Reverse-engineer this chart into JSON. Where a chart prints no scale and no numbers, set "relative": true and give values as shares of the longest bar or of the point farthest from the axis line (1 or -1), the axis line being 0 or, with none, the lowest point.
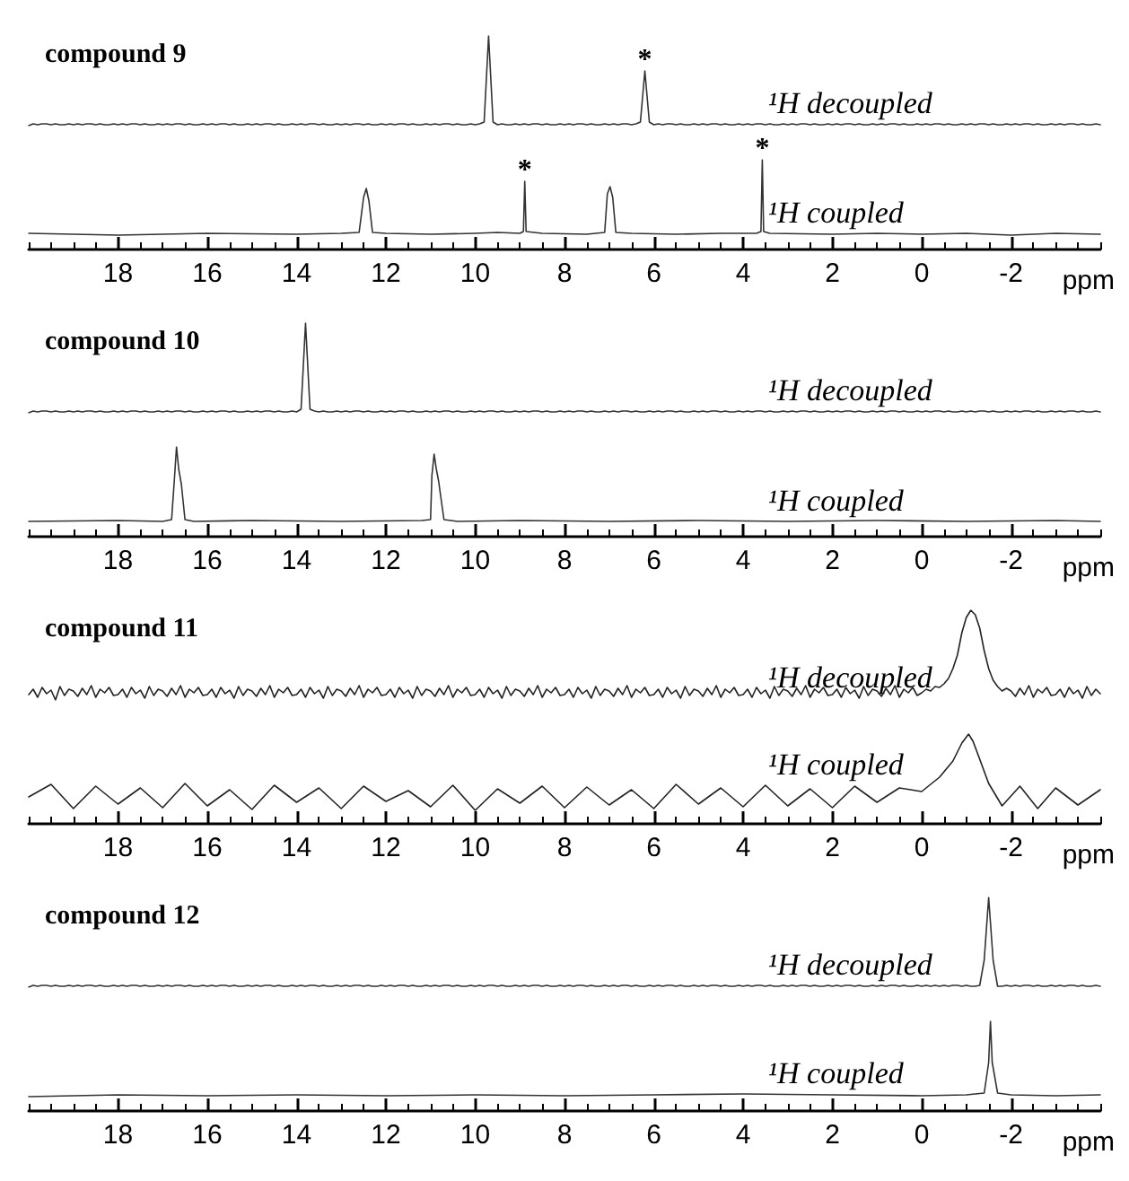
{
  "chart_data": [
    {
      "type": "line",
      "title": "compound 9",
      "relative": true,
      "tick_labels": false,
      "marker": "none",
      "categories": [
        null,
        null,
        null,
        null,
        null,
        null,
        null,
        null,
        null,
        null,
        null,
        null,
        null,
        null,
        null,
        null,
        null,
        null,
        null,
        null,
        null,
        null,
        null,
        null,
        null,
        null,
        null,
        null,
        null,
        null,
        null,
        null,
        null,
        null,
        null,
        null,
        null,
        null,
        null,
        null,
        null,
        null,
        null,
        null,
        null,
        null,
        null,
        null,
        null,
        null,
        null,
        null,
        null,
        null,
        null,
        null,
        null,
        null,
        null,
        null,
        null,
        null,
        null,
        null,
        null,
        null,
        null,
        null,
        null,
        null,
        null,
        null,
        null,
        null,
        null,
        null,
        null,
        null,
        null,
        null,
        null,
        null,
        null,
        null,
        null,
        null,
        null,
        null,
        null,
        null,
        null,
        null,
        null,
        null,
        null,
        null,
        null,
        null,
        null,
        null,
        null,
        null,
        null,
        null,
        null,
        null,
        null,
        null,
        null,
        null,
        null,
        null,
        null,
        null,
        null,
        null,
        null,
        null,
        null,
        null,
        null,
        null,
        null,
        null,
        null,
        null,
        null,
        null,
        null,
        null,
        null,
        null,
        null,
        null,
        null,
        null,
        null,
        null,
        null,
        null,
        null,
        null,
        null,
        null,
        null,
        null,
        null,
        null,
        null,
        null,
        null,
        null,
        null,
        null,
        null,
        null,
        null,
        null,
        null,
        null,
        null,
        null,
        null,
        null,
        null,
        null,
        null,
        null,
        null,
        null,
        null,
        null,
        null,
        null,
        null,
        null,
        null,
        null,
        null,
        null,
        null,
        null,
        null,
        null,
        null,
        null,
        null,
        null,
        null,
        null,
        null,
        null,
        null,
        null,
        null,
        null,
        null,
        null,
        null,
        null,
        null,
        null,
        null,
        null,
        null,
        null,
        null,
        null,
        null,
        null,
        null,
        null,
        null,
        null,
        null,
        null,
        null,
        null,
        null,
        null,
        null,
        null,
        null,
        null,
        null,
        null,
        null,
        null,
        null,
        null,
        null,
        null,
        null,
        null,
        null,
        null,
        null,
        null,
        null,
        null,
        null
      ],
      "annotations": [
        {
          "text": "*",
          "y": 0.61
        }
      ],
      "series": [
        {
          "name": "¹H decoupled",
          "color": "#333333",
          "values": [
            0,
            0.02,
            0.01,
            0.02,
            0.02,
            0.01,
            0.02,
            0.01,
            0.01,
            0.02,
            0.01,
            0.02,
            0.01,
            0.02,
            0.02,
            0.01,
            0.02,
            0.01,
            0.01,
            0.02,
            0.01,
            0.02,
            0.01,
            0.02,
            0.02,
            0.01,
            0.02,
            0.01,
            0.01,
            0.02,
            0.01,
            0.02,
            0.01,
            0.02,
            0.02,
            0.01,
            0.02,
            0.01,
            0.01,
            0.02,
            0.01,
            0.02,
            0.01,
            0.02,
            0.02,
            0.01,
            0.02,
            0.01,
            0.01,
            0.02,
            0.01,
            0.02,
            0.01,
            0.02,
            0.02,
            0.01,
            0.02,
            0.01,
            0.01,
            0.02,
            0.01,
            0.02,
            0.01,
            0.02,
            0.02,
            0.01,
            0.02,
            0.01,
            0.01,
            0.02,
            0.01,
            0.02,
            0.01,
            0.02,
            0.02,
            0.01,
            0.02,
            0.01,
            0.01,
            0.02,
            0.01,
            0.02,
            0.01,
            0.02,
            0.02,
            0.01,
            0.02,
            0.01,
            0.01,
            0.02,
            0.01,
            0.02,
            0.01,
            0.02,
            0.02,
            0.01,
            0.02,
            0.01,
            0.01,
            0.02,
            0.01,
            0.02,
            0.04,
            1,
            0.04,
            0.01,
            0.02,
            0.01,
            0.01,
            0.02,
            0.01,
            0.02,
            0.01,
            0.02,
            0.02,
            0.01,
            0.02,
            0.01,
            0.01,
            0.02,
            0.01,
            0.02,
            0.01,
            0.02,
            0.02,
            0.01,
            0.02,
            0.01,
            0.01,
            0.02,
            0.01,
            0.02,
            0.01,
            0.02,
            0.02,
            0.01,
            0.02,
            0.04,
            0.61,
            0.04,
            0.01,
            0.02,
            0.01,
            0.02,
            0.02,
            0.01,
            0.02,
            0.01,
            0.01,
            0.02,
            0.01,
            0.02,
            0.01,
            0.02,
            0.02,
            0.01,
            0.02,
            0.01,
            0.01,
            0.02,
            0.01,
            0.02,
            0.01,
            0.02,
            0.02,
            0.01,
            0.02,
            0.01,
            0.01,
            0.02,
            0.01,
            0.02,
            0.01,
            0.02,
            0.02,
            0.01,
            0.02,
            0.01,
            0.01,
            0.02,
            0.01,
            0.02,
            0.01,
            0.02,
            0.02,
            0.01,
            0.02,
            0.01,
            0.01,
            0.02,
            0.01,
            0.02,
            0.01,
            0.02,
            0.02,
            0.01,
            0.02,
            0.01,
            0.01,
            0.02,
            0.01,
            0.02,
            0.01,
            0.02,
            0.02,
            0.01,
            0.02,
            0.01,
            0.01,
            0.02,
            0.01,
            0.02,
            0.01,
            0.02,
            0.02,
            0.01,
            0.02,
            0.01,
            0.01,
            0.02,
            0.01,
            0.02,
            0.01,
            0.02,
            0.02,
            0.01,
            0.02,
            0.01,
            0.01,
            0.02,
            0.01,
            0.02,
            0.01,
            0.02,
            0.02,
            0.01,
            0.02,
            0.01,
            0.01,
            0.02,
            0.01
          ]
        }
      ]
    },
    {
      "type": "line",
      "xlabel": "ppm",
      "relative": true,
      "tick_labels": "x",
      "marker": "none",
      "xlim": [
        20,
        -4
      ],
      "xticks": [
        18,
        16,
        14,
        12,
        10,
        8,
        6,
        4,
        2,
        0,
        -2
      ],
      "annotations": [
        {
          "text": "*",
          "x": 8.89,
          "y": 0.76
        },
        {
          "text": "*",
          "x": 3.57,
          "y": 1
        }
      ],
      "series": [
        {
          "name": "¹H coupled",
          "color": "#333333",
          "x": [
            20,
            18,
            16,
            14,
            13,
            12.6,
            12.5,
            12.44,
            12.38,
            12.3,
            12,
            11,
            10,
            9.5,
            9,
            8.92,
            8.89,
            8.86,
            8.5,
            7.5,
            7.1,
            7.04,
            6.98,
            6.92,
            6.85,
            6.5,
            5.5,
            4.5,
            3.7,
            3.6,
            3.57,
            3.54,
            3.4,
            2,
            1,
            0,
            -1,
            -2,
            -3,
            -4
          ],
          "values": [
            0.18,
            0.16,
            0.18,
            0.17,
            0.18,
            0.19,
            0.58,
            0.68,
            0.54,
            0.19,
            0.18,
            0.17,
            0.18,
            0.19,
            0.18,
            0.2,
            0.76,
            0.2,
            0.18,
            0.17,
            0.19,
            0.62,
            0.7,
            0.58,
            0.19,
            0.18,
            0.17,
            0.18,
            0.18,
            0.2,
            1,
            0.2,
            0.18,
            0.17,
            0.18,
            0.17,
            0.18,
            0.16,
            0.18,
            0.17
          ]
        }
      ]
    },
    {
      "type": "line",
      "title": "compound 10",
      "relative": true,
      "tick_labels": false,
      "marker": "none",
      "categories": [
        null,
        null,
        null,
        null,
        null,
        null,
        null,
        null,
        null,
        null,
        null,
        null,
        null,
        null,
        null,
        null,
        null,
        null,
        null,
        null,
        null,
        null,
        null,
        null,
        null,
        null,
        null,
        null,
        null,
        null,
        null,
        null,
        null,
        null,
        null,
        null,
        null,
        null,
        null,
        null,
        null,
        null,
        null,
        null,
        null,
        null,
        null,
        null,
        null,
        null,
        null,
        null,
        null,
        null,
        null,
        null,
        null,
        null,
        null,
        null,
        null,
        null,
        null,
        null,
        null,
        null,
        null,
        null,
        null,
        null,
        null,
        null,
        null,
        null,
        null,
        null,
        null,
        null,
        null,
        null,
        null,
        null,
        null,
        null,
        null,
        null,
        null,
        null,
        null,
        null,
        null,
        null,
        null,
        null,
        null,
        null,
        null,
        null,
        null,
        null,
        null,
        null,
        null,
        null,
        null,
        null,
        null,
        null,
        null,
        null,
        null,
        null,
        null,
        null,
        null,
        null,
        null,
        null,
        null,
        null,
        null,
        null,
        null,
        null,
        null,
        null,
        null,
        null,
        null,
        null,
        null,
        null,
        null,
        null,
        null,
        null,
        null,
        null,
        null,
        null,
        null,
        null,
        null,
        null,
        null,
        null,
        null,
        null,
        null,
        null,
        null,
        null,
        null,
        null,
        null,
        null,
        null,
        null,
        null,
        null,
        null,
        null,
        null,
        null,
        null,
        null,
        null,
        null,
        null,
        null,
        null,
        null,
        null,
        null,
        null,
        null,
        null,
        null,
        null,
        null,
        null,
        null,
        null,
        null,
        null,
        null,
        null,
        null,
        null,
        null,
        null,
        null,
        null,
        null,
        null,
        null,
        null,
        null,
        null,
        null,
        null,
        null,
        null,
        null,
        null,
        null,
        null,
        null,
        null,
        null,
        null,
        null,
        null,
        null,
        null,
        null,
        null,
        null,
        null,
        null,
        null,
        null,
        null,
        null,
        null,
        null,
        null,
        null,
        null,
        null,
        null,
        null,
        null,
        null,
        null,
        null,
        null,
        null,
        null,
        null,
        null
      ],
      "series": [
        {
          "name": "¹H decoupled",
          "color": "#333333",
          "values": [
            0,
            0.02,
            0.01,
            0.02,
            0.02,
            0.01,
            0.02,
            0.01,
            0.01,
            0.02,
            0.01,
            0.02,
            0.01,
            0.02,
            0.02,
            0.01,
            0.02,
            0.01,
            0.01,
            0.02,
            0.01,
            0.02,
            0.01,
            0.02,
            0.02,
            0.01,
            0.02,
            0.01,
            0.01,
            0.02,
            0.01,
            0.02,
            0.01,
            0.02,
            0.02,
            0.01,
            0.02,
            0.01,
            0.01,
            0.02,
            0.01,
            0.02,
            0.01,
            0.02,
            0.02,
            0.01,
            0.02,
            0.01,
            0.01,
            0.02,
            0.01,
            0.02,
            0.01,
            0.02,
            0.02,
            0.01,
            0.02,
            0.01,
            0.01,
            0.02,
            0.01,
            0.04,
            1,
            0.04,
            0.02,
            0.01,
            0.02,
            0.01,
            0.01,
            0.02,
            0.01,
            0.02,
            0.01,
            0.02,
            0.02,
            0.01,
            0.02,
            0.01,
            0.01,
            0.02,
            0.01,
            0.02,
            0.01,
            0.02,
            0.02,
            0.01,
            0.02,
            0.01,
            0.01,
            0.02,
            0.01,
            0.02,
            0.01,
            0.02,
            0.02,
            0.01,
            0.02,
            0.01,
            0.01,
            0.02,
            0.01,
            0.02,
            0.01,
            0.02,
            0.02,
            0.01,
            0.02,
            0.01,
            0.01,
            0.02,
            0.01,
            0.02,
            0.01,
            0.02,
            0.02,
            0.01,
            0.02,
            0.01,
            0.01,
            0.02,
            0.01,
            0.02,
            0.01,
            0.02,
            0.02,
            0.01,
            0.02,
            0.01,
            0.01,
            0.02,
            0.01,
            0.02,
            0.01,
            0.02,
            0.02,
            0.01,
            0.02,
            0.01,
            0.01,
            0.02,
            0.01,
            0.02,
            0.01,
            0.02,
            0.02,
            0.01,
            0.02,
            0.01,
            0.01,
            0.02,
            0.01,
            0.02,
            0.01,
            0.02,
            0.02,
            0.01,
            0.02,
            0.01,
            0.01,
            0.02,
            0.01,
            0.02,
            0.01,
            0.02,
            0.02,
            0.01,
            0.02,
            0.01,
            0.01,
            0.02,
            0.01,
            0.02,
            0.01,
            0.02,
            0.02,
            0.01,
            0.02,
            0.01,
            0.01,
            0.02,
            0.01,
            0.02,
            0.01,
            0.02,
            0.02,
            0.01,
            0.02,
            0.01,
            0.01,
            0.02,
            0.01,
            0.02,
            0.01,
            0.02,
            0.02,
            0.01,
            0.02,
            0.01,
            0.01,
            0.02,
            0.01,
            0.02,
            0.01,
            0.02,
            0.02,
            0.01,
            0.02,
            0.01,
            0.01,
            0.02,
            0.01,
            0.02,
            0.01,
            0.02,
            0.02,
            0.01,
            0.02,
            0.01,
            0.01,
            0.02,
            0.01,
            0.02,
            0.01,
            0.02,
            0.02,
            0.01,
            0.02,
            0.01,
            0.01,
            0.02,
            0.01,
            0.02,
            0.01,
            0.02,
            0.02,
            0.01,
            0.02,
            0.01,
            0.01,
            0.02,
            0.01
          ]
        }
      ]
    },
    {
      "type": "line",
      "xlabel": "ppm",
      "relative": true,
      "tick_labels": "x",
      "marker": "none",
      "xlim": [
        20,
        -4
      ],
      "xticks": [
        18,
        16,
        14,
        12,
        10,
        8,
        6,
        4,
        2,
        0,
        -2
      ],
      "series": [
        {
          "name": "¹H coupled",
          "color": "#333333",
          "x": [
            20,
            18,
            17,
            16.8,
            16.74,
            16.69,
            16.64,
            16.58,
            16.5,
            16.3,
            15,
            13,
            11.2,
            11,
            10.97,
            10.92,
            10.87,
            10.82,
            10.7,
            10.4,
            9,
            7,
            5,
            3,
            1,
            -1,
            -3,
            -4
          ],
          "values": [
            0.17,
            0.18,
            0.17,
            0.19,
            0.62,
            1,
            0.75,
            0.58,
            0.19,
            0.17,
            0.18,
            0.17,
            0.18,
            0.19,
            0.68,
            0.92,
            0.75,
            0.62,
            0.19,
            0.17,
            0.18,
            0.17,
            0.18,
            0.17,
            0.18,
            0.17,
            0.18,
            0.17
          ]
        }
      ]
    },
    {
      "type": "line",
      "title": "compound 11",
      "relative": true,
      "tick_labels": false,
      "marker": "none",
      "categories": [
        null,
        null,
        null,
        null,
        null,
        null,
        null,
        null,
        null,
        null,
        null,
        null,
        null,
        null,
        null,
        null,
        null,
        null,
        null,
        null,
        null,
        null,
        null,
        null,
        null,
        null,
        null,
        null,
        null,
        null,
        null,
        null,
        null,
        null,
        null,
        null,
        null,
        null,
        null,
        null,
        null,
        null,
        null,
        null,
        null,
        null,
        null,
        null,
        null,
        null,
        null,
        null,
        null,
        null,
        null,
        null,
        null,
        null,
        null,
        null,
        null,
        null,
        null,
        null,
        null,
        null,
        null,
        null,
        null,
        null,
        null,
        null,
        null,
        null,
        null,
        null,
        null,
        null,
        null,
        null,
        null,
        null,
        null,
        null,
        null,
        null,
        null,
        null,
        null,
        null,
        null,
        null,
        null,
        null,
        null,
        null,
        null,
        null,
        null,
        null,
        null,
        null,
        null,
        null,
        null,
        null,
        null,
        null,
        null,
        null,
        null,
        null,
        null,
        null,
        null,
        null,
        null,
        null,
        null,
        null,
        null,
        null,
        null,
        null,
        null,
        null,
        null,
        null,
        null,
        null,
        null,
        null,
        null,
        null,
        null,
        null,
        null,
        null,
        null,
        null,
        null,
        null,
        null,
        null,
        null,
        null,
        null,
        null,
        null,
        null,
        null,
        null,
        null,
        null,
        null,
        null,
        null,
        null,
        null,
        null,
        null,
        null,
        null,
        null,
        null,
        null,
        null,
        null,
        null,
        null,
        null,
        null,
        null,
        null,
        null,
        null,
        null,
        null,
        null,
        null,
        null,
        null,
        null,
        null,
        null,
        null,
        null,
        null,
        null,
        null,
        null,
        null,
        null,
        null,
        null,
        null,
        null,
        null,
        null,
        null,
        null,
        null,
        null,
        null,
        null,
        null,
        null,
        null,
        null,
        null,
        null,
        null,
        null,
        null,
        null,
        null,
        null,
        null,
        null,
        null,
        null,
        null,
        null,
        null,
        null,
        null,
        null,
        null,
        null,
        null,
        null,
        null,
        null,
        null,
        null,
        null,
        null,
        null,
        null,
        null,
        null
      ],
      "series": [
        {
          "name": "¹H decoupled",
          "color": "#222222",
          "values": [
            0.06,
            0.12,
            0.03,
            0.14,
            0.07,
            0.11,
            0,
            0.15,
            0.05,
            0.12,
            0.1,
            0.04,
            0.13,
            0.06,
            0.16,
            0.03,
            0.12,
            0.08,
            0.14,
            0.05,
            0.06,
            0.12,
            0.03,
            0.14,
            0.07,
            0.11,
            0.02,
            0.15,
            0.05,
            0.12,
            0.1,
            0.04,
            0.13,
            0.06,
            0.16,
            0.03,
            0.12,
            0.08,
            0.14,
            0.05,
            0.06,
            0.12,
            0.03,
            0.14,
            0.07,
            0.11,
            0.02,
            0.15,
            0.05,
            0.12,
            0.1,
            0.04,
            0.13,
            0.06,
            0.16,
            0.03,
            0.12,
            0.08,
            0.14,
            0.05,
            0.06,
            0.12,
            0.03,
            0.14,
            0.07,
            0.11,
            0.02,
            0.15,
            0.05,
            0.12,
            0.1,
            0.04,
            0.13,
            0.06,
            0.16,
            0.03,
            0.12,
            0.08,
            0.14,
            0.05,
            0.06,
            0.12,
            0.03,
            0.14,
            0.07,
            0.11,
            0.02,
            0.15,
            0.05,
            0.12,
            0.1,
            0.04,
            0.13,
            0.06,
            0.16,
            0.03,
            0.12,
            0.08,
            0.14,
            0.05,
            0.06,
            0.12,
            0.03,
            0.14,
            0.07,
            0.11,
            0.02,
            0.15,
            0.05,
            0.12,
            0.1,
            0.04,
            0.13,
            0.06,
            0.16,
            0.03,
            0.12,
            0.08,
            0.14,
            0.05,
            0.06,
            0.12,
            0.03,
            0.14,
            0.07,
            0.11,
            0.02,
            0.15,
            0.05,
            0.12,
            0.1,
            0.04,
            0.13,
            0.06,
            0.16,
            0.03,
            0.12,
            0.08,
            0.14,
            0.05,
            0.06,
            0.12,
            0.03,
            0.14,
            0.07,
            0.11,
            0.02,
            0.15,
            0.05,
            0.12,
            0.1,
            0.04,
            0.13,
            0.06,
            0.16,
            0.03,
            0.12,
            0.08,
            0.14,
            0.05,
            0.06,
            0.12,
            0.03,
            0.14,
            0.07,
            0.11,
            0.02,
            0.15,
            0.05,
            0.12,
            0.1,
            0.04,
            0.13,
            0.06,
            0.16,
            0.03,
            0.12,
            0.08,
            0.14,
            0.05,
            0.06,
            0.12,
            0.03,
            0.14,
            0.07,
            0.11,
            0.02,
            0.15,
            0.05,
            0.12,
            0.1,
            0.04,
            0.13,
            0.06,
            0.16,
            0.03,
            0.12,
            0.08,
            0.14,
            0.05,
            0.08,
            0.12,
            0.1,
            0.15,
            0.14,
            0.18,
            0.24,
            0.35,
            0.5,
            0.75,
            0.92,
            1,
            0.95,
            0.8,
            0.55,
            0.35,
            0.22,
            0.15,
            0.1,
            0.13,
            0.1,
            0.04,
            0.13,
            0.06,
            0.16,
            0.03,
            0.12,
            0.08,
            0.14,
            0.05,
            0.06,
            0.12,
            0.03,
            0.14,
            0.07,
            0.11,
            0.02,
            0.15,
            0.05,
            0.12,
            0.07
          ]
        }
      ]
    },
    {
      "type": "line",
      "xlabel": "ppm",
      "relative": true,
      "tick_labels": "x",
      "marker": "none",
      "xlim": [
        20,
        -4
      ],
      "xticks": [
        18,
        16,
        14,
        12,
        10,
        8,
        6,
        4,
        2,
        0,
        -2
      ],
      "series": [
        {
          "name": "¹H coupled",
          "color": "#222222",
          "x": [
            20,
            19.5,
            19,
            18.5,
            18,
            17.5,
            17,
            16.5,
            16,
            15.5,
            15,
            14.5,
            14,
            13.5,
            13,
            12.5,
            12,
            11.5,
            11,
            10.5,
            10,
            9.5,
            9,
            8.5,
            8,
            7.5,
            7,
            6.5,
            6,
            5.5,
            5,
            4.5,
            4,
            3.5,
            3,
            2.5,
            2,
            1.5,
            1,
            0.5,
            0,
            -0.4,
            -0.7,
            -0.9,
            -1.05,
            -1.15,
            -1.3,
            -1.5,
            -1.8,
            -2.2,
            -2.6,
            -3,
            -3.5,
            -4
          ],
          "values": [
            0.3,
            0.44,
            0.17,
            0.42,
            0.22,
            0.4,
            0.18,
            0.45,
            0.2,
            0.38,
            0.16,
            0.43,
            0.24,
            0.4,
            0.17,
            0.42,
            0.25,
            0.37,
            0.19,
            0.43,
            0.15,
            0.39,
            0.23,
            0.42,
            0.18,
            0.41,
            0.21,
            0.38,
            0.17,
            0.44,
            0.22,
            0.4,
            0.19,
            0.43,
            0.2,
            0.39,
            0.18,
            0.42,
            0.24,
            0.4,
            0.36,
            0.52,
            0.7,
            0.9,
            1,
            0.92,
            0.72,
            0.45,
            0.2,
            0.42,
            0.17,
            0.4,
            0.21,
            0.38
          ]
        }
      ]
    },
    {
      "type": "line",
      "title": "compound 12",
      "relative": true,
      "tick_labels": false,
      "marker": "none",
      "categories": [
        null,
        null,
        null,
        null,
        null,
        null,
        null,
        null,
        null,
        null,
        null,
        null,
        null,
        null,
        null,
        null,
        null,
        null,
        null,
        null,
        null,
        null,
        null,
        null,
        null,
        null,
        null,
        null,
        null,
        null,
        null,
        null,
        null,
        null,
        null,
        null,
        null,
        null,
        null,
        null,
        null,
        null,
        null,
        null,
        null,
        null,
        null,
        null,
        null,
        null,
        null,
        null,
        null,
        null,
        null,
        null,
        null,
        null,
        null,
        null,
        null,
        null,
        null,
        null,
        null,
        null,
        null,
        null,
        null,
        null,
        null,
        null,
        null,
        null,
        null,
        null,
        null,
        null,
        null,
        null,
        null,
        null,
        null,
        null,
        null,
        null,
        null,
        null,
        null,
        null,
        null,
        null,
        null,
        null,
        null,
        null,
        null,
        null,
        null,
        null,
        null,
        null,
        null,
        null,
        null,
        null,
        null,
        null,
        null,
        null,
        null,
        null,
        null,
        null,
        null,
        null,
        null,
        null,
        null,
        null,
        null,
        null,
        null,
        null,
        null,
        null,
        null,
        null,
        null,
        null,
        null,
        null,
        null,
        null,
        null,
        null,
        null,
        null,
        null,
        null,
        null,
        null,
        null,
        null,
        null,
        null,
        null,
        null,
        null,
        null,
        null,
        null,
        null,
        null,
        null,
        null,
        null,
        null,
        null,
        null,
        null,
        null,
        null,
        null,
        null,
        null,
        null,
        null,
        null,
        null,
        null,
        null,
        null,
        null,
        null,
        null,
        null,
        null,
        null,
        null,
        null,
        null,
        null,
        null,
        null,
        null,
        null,
        null,
        null,
        null,
        null,
        null,
        null,
        null,
        null,
        null,
        null,
        null,
        null,
        null,
        null,
        null,
        null,
        null,
        null,
        null,
        null,
        null,
        null,
        null,
        null,
        null,
        null,
        null,
        null,
        null,
        null,
        null,
        null,
        null,
        null,
        null,
        null,
        null,
        null,
        null,
        null,
        null,
        null,
        null,
        null,
        null,
        null,
        null,
        null,
        null,
        null,
        null,
        null,
        null,
        null
      ],
      "series": [
        {
          "name": "¹H decoupled",
          "color": "#333333",
          "values": [
            0,
            0.02,
            0.01,
            0.02,
            0.02,
            0.01,
            0.02,
            0.01,
            0.01,
            0.02,
            0.01,
            0.02,
            0.01,
            0.02,
            0.02,
            0.01,
            0.02,
            0.01,
            0.01,
            0.02,
            0.01,
            0.02,
            0.01,
            0.02,
            0.02,
            0.01,
            0.02,
            0.01,
            0.01,
            0.02,
            0.01,
            0.02,
            0.01,
            0.02,
            0.02,
            0.01,
            0.02,
            0.01,
            0.01,
            0.02,
            0.01,
            0.02,
            0.01,
            0.02,
            0.02,
            0.01,
            0.02,
            0.01,
            0.01,
            0.02,
            0.01,
            0.02,
            0.01,
            0.02,
            0.02,
            0.01,
            0.02,
            0.01,
            0.01,
            0.02,
            0.01,
            0.02,
            0.01,
            0.02,
            0.02,
            0.01,
            0.02,
            0.01,
            0.01,
            0.02,
            0.01,
            0.02,
            0.01,
            0.02,
            0.02,
            0.01,
            0.02,
            0.01,
            0.01,
            0.02,
            0.01,
            0.02,
            0.01,
            0.02,
            0.02,
            0.01,
            0.02,
            0.01,
            0.01,
            0.02,
            0.01,
            0.02,
            0.01,
            0.02,
            0.02,
            0.01,
            0.02,
            0.01,
            0.01,
            0.02,
            0.01,
            0.02,
            0.01,
            0.02,
            0.02,
            0.01,
            0.02,
            0.01,
            0.01,
            0.02,
            0.01,
            0.02,
            0.01,
            0.02,
            0.02,
            0.01,
            0.02,
            0.01,
            0.01,
            0.02,
            0.01,
            0.02,
            0.01,
            0.02,
            0.02,
            0.01,
            0.02,
            0.01,
            0.01,
            0.02,
            0.01,
            0.02,
            0.01,
            0.02,
            0.02,
            0.01,
            0.02,
            0.01,
            0.01,
            0.02,
            0.01,
            0.02,
            0.01,
            0.02,
            0.02,
            0.01,
            0.02,
            0.01,
            0.01,
            0.02,
            0.01,
            0.02,
            0.01,
            0.02,
            0.02,
            0.01,
            0.02,
            0.01,
            0.01,
            0.02,
            0.01,
            0.02,
            0.01,
            0.02,
            0.02,
            0.01,
            0.02,
            0.01,
            0.01,
            0.02,
            0.01,
            0.02,
            0.01,
            0.02,
            0.02,
            0.01,
            0.02,
            0.01,
            0.01,
            0.02,
            0.01,
            0.02,
            0.01,
            0.02,
            0.02,
            0.01,
            0.02,
            0.01,
            0.01,
            0.02,
            0.01,
            0.02,
            0.01,
            0.02,
            0.02,
            0.01,
            0.02,
            0.01,
            0.01,
            0.02,
            0.01,
            0.02,
            0.01,
            0.02,
            0.01,
            0.02,
            0.01,
            0.02,
            0.02,
            0.01,
            0.02,
            0.01,
            0.01,
            0.02,
            0.3,
            1,
            0.3,
            0.01,
            0.01,
            0.02,
            0.01,
            0.02,
            0.01,
            0.02,
            0.02,
            0.01,
            0.02,
            0.01,
            0.01,
            0.02,
            0.01,
            0.02,
            0.01,
            0.02,
            0.02,
            0.01,
            0.02,
            0.01,
            0.01,
            0.02,
            0.01
          ]
        }
      ]
    },
    {
      "type": "line",
      "xlabel": "ppm",
      "relative": true,
      "tick_labels": "x",
      "marker": "none",
      "xlim": [
        20,
        -4
      ],
      "xticks": [
        18,
        16,
        14,
        12,
        10,
        8,
        6,
        4,
        2,
        0,
        -2
      ],
      "series": [
        {
          "name": "¹H coupled",
          "color": "#333333",
          "x": [
            20,
            18,
            16,
            14,
            12,
            10,
            8,
            6,
            4,
            2,
            0,
            -1,
            -1.4,
            -1.5,
            -1.54,
            -1.58,
            -1.7,
            -2,
            -3,
            -4
          ],
          "values": [
            0.16,
            0.18,
            0.17,
            0.18,
            0.17,
            0.18,
            0.17,
            0.18,
            0.19,
            0.18,
            0.17,
            0.18,
            0.2,
            0.54,
            1,
            0.54,
            0.2,
            0.18,
            0.17,
            0.18
          ]
        }
      ]
    }
  ]
}
